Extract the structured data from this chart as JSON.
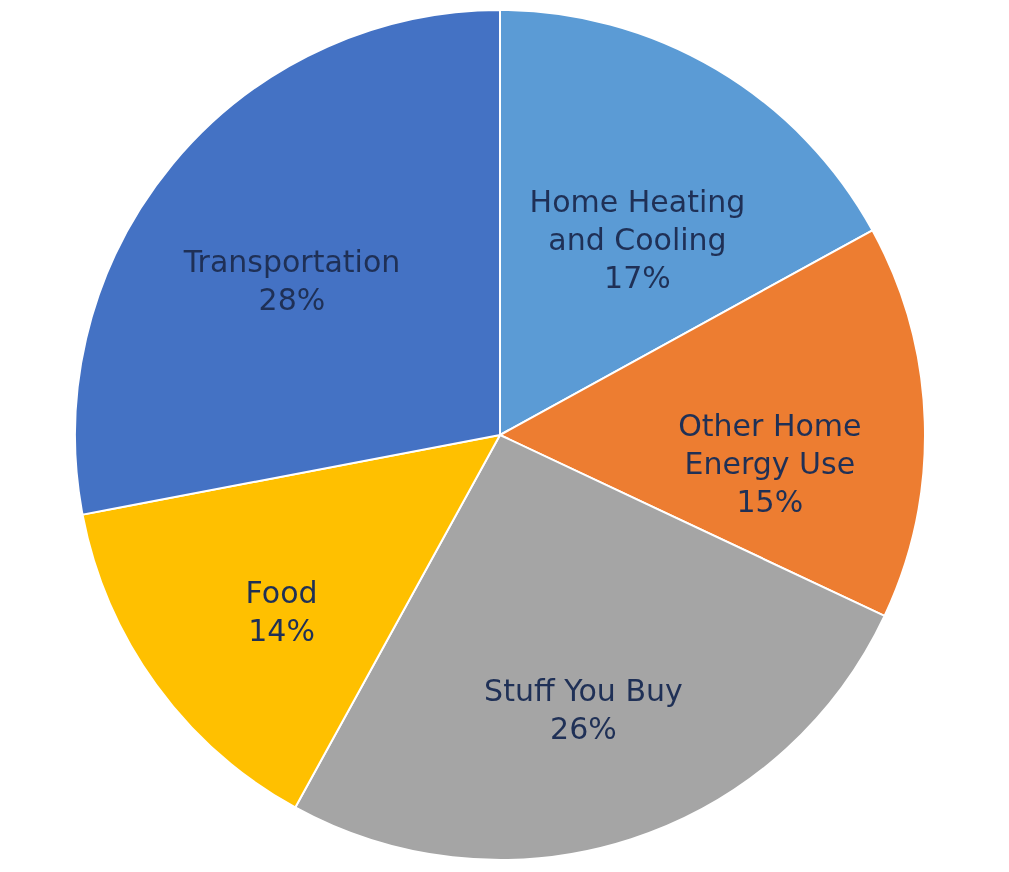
{
  "chart_data": {
    "type": "pie",
    "categories": [
      "Home Heating and Cooling",
      "Other Home Energy Use",
      "Stuff You Buy",
      "Food",
      "Transportation"
    ],
    "values": [
      17,
      15,
      26,
      14,
      28
    ],
    "colors": [
      "#5b9bd5",
      "#ed7d31",
      "#a5a5a5",
      "#ffc000",
      "#4472c4"
    ],
    "value_labels": [
      "17%",
      "15%",
      "26%",
      "14%",
      "28%"
    ],
    "legend": false
  }
}
